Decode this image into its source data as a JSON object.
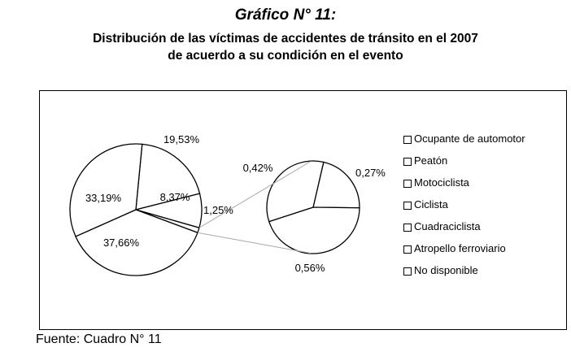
{
  "header": {
    "chart_number": "Gráfico N° 11:",
    "title_line1": "Distribución de las víctimas de accidentes de tránsito en el 2007",
    "title_line2": "de acuerdo a su condición en el evento"
  },
  "footer": {
    "source": "Fuente: Cuadro N° 11"
  },
  "chart_data": {
    "type": "pie",
    "title": "Distribución de las víctimas de accidentes de tránsito en el 2007 de acuerdo a su condición en el evento",
    "legend_position": "right",
    "main_pie": {
      "slices": [
        {
          "label": "19,53%",
          "value": 19.53
        },
        {
          "label": "8,37%",
          "value": 8.37
        },
        {
          "label": "1,25%",
          "value": 1.25,
          "exploded_to_secondary": true
        },
        {
          "label": "37,66%",
          "value": 37.66
        },
        {
          "label": "33,19%",
          "value": 33.19
        }
      ]
    },
    "secondary_pie": {
      "slices": [
        {
          "label": "0,27%",
          "value": 0.27
        },
        {
          "label": "0,56%",
          "value": 0.56
        },
        {
          "label": "0,42%",
          "value": 0.42
        }
      ]
    },
    "legend": [
      "Ocupante de automotor",
      "Peatón",
      "Motociclista",
      "Ciclista",
      "Cuadraciclista",
      "Atropello ferroviario",
      "No disponible"
    ],
    "colors": {
      "fill": "#ffffff",
      "stroke": "#000000",
      "connector": "#a8a8a8"
    }
  }
}
